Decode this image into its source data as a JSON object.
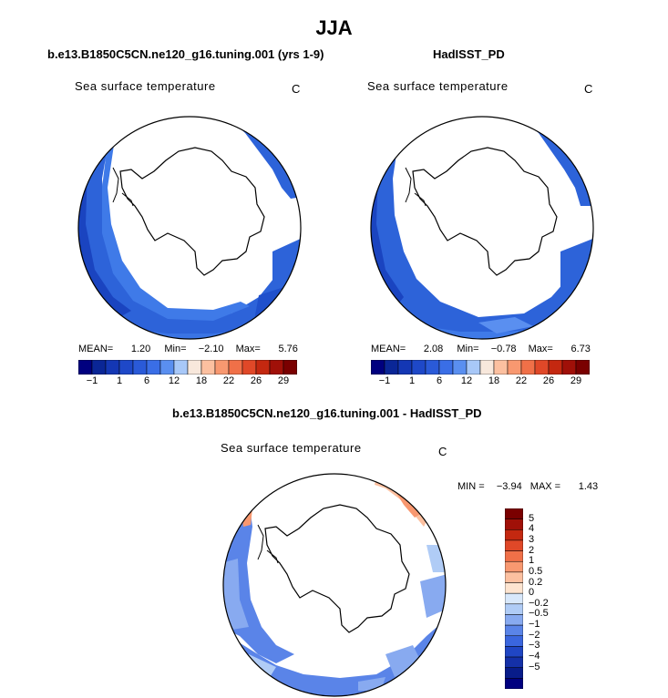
{
  "season_title": "JJA",
  "panels": [
    {
      "title": "b.e13.B1850C5CN.ne120_g16.tuning.001 (yrs 1-9)",
      "variable": "Sea surface temperature",
      "units": "C",
      "stats": {
        "mean_label": "MEAN=",
        "mean": "1.20",
        "min_label": "Min=",
        "min": "−2.10",
        "max_label": "Max=",
        "max": "5.76"
      }
    },
    {
      "title": "HadISST_PD",
      "variable": "Sea surface temperature",
      "units": "C",
      "stats": {
        "mean_label": "MEAN=",
        "mean": "2.08",
        "min_label": "Min=",
        "min": "−0.78",
        "max_label": "Max=",
        "max": "6.73"
      }
    },
    {
      "title": "b.e13.B1850C5CN.ne120_g16.tuning.001 - HadISST_PD",
      "variable": "Sea surface temperature",
      "units": "C",
      "stats": {
        "min_label": "MIN =",
        "min": "−3.94",
        "max_label": "MAX =",
        "max": "1.43"
      }
    }
  ],
  "colorbar_top": {
    "colors": [
      "#00007f",
      "#0a2696",
      "#1437b4",
      "#1e48c8",
      "#2a5ad8",
      "#3a6ee6",
      "#5a8ff0",
      "#a8c8f8",
      "#f8e8dc",
      "#fcc0a0",
      "#f89870",
      "#f07048",
      "#e04828",
      "#c42810",
      "#a01008",
      "#7a0000"
    ],
    "tick_labels": [
      "−1",
      "1",
      "6",
      "12",
      "18",
      "22",
      "26",
      "29"
    ]
  },
  "colorbar_diff": {
    "colors": [
      "#7a0000",
      "#a01008",
      "#c42810",
      "#e04828",
      "#f07048",
      "#f89870",
      "#fcc0a0",
      "#fde4d0",
      "#d8e8fb",
      "#b0ccf6",
      "#88aaf0",
      "#5a84e8",
      "#3a66de",
      "#2046c4",
      "#1430a8",
      "#081c8a",
      "#00007f"
    ],
    "tick_labels": [
      "5",
      "4",
      "3",
      "2",
      "1",
      "0.5",
      "0.2",
      "0",
      "−0.2",
      "−0.5",
      "−1",
      "−2",
      "−3",
      "−4",
      "−5"
    ]
  }
}
